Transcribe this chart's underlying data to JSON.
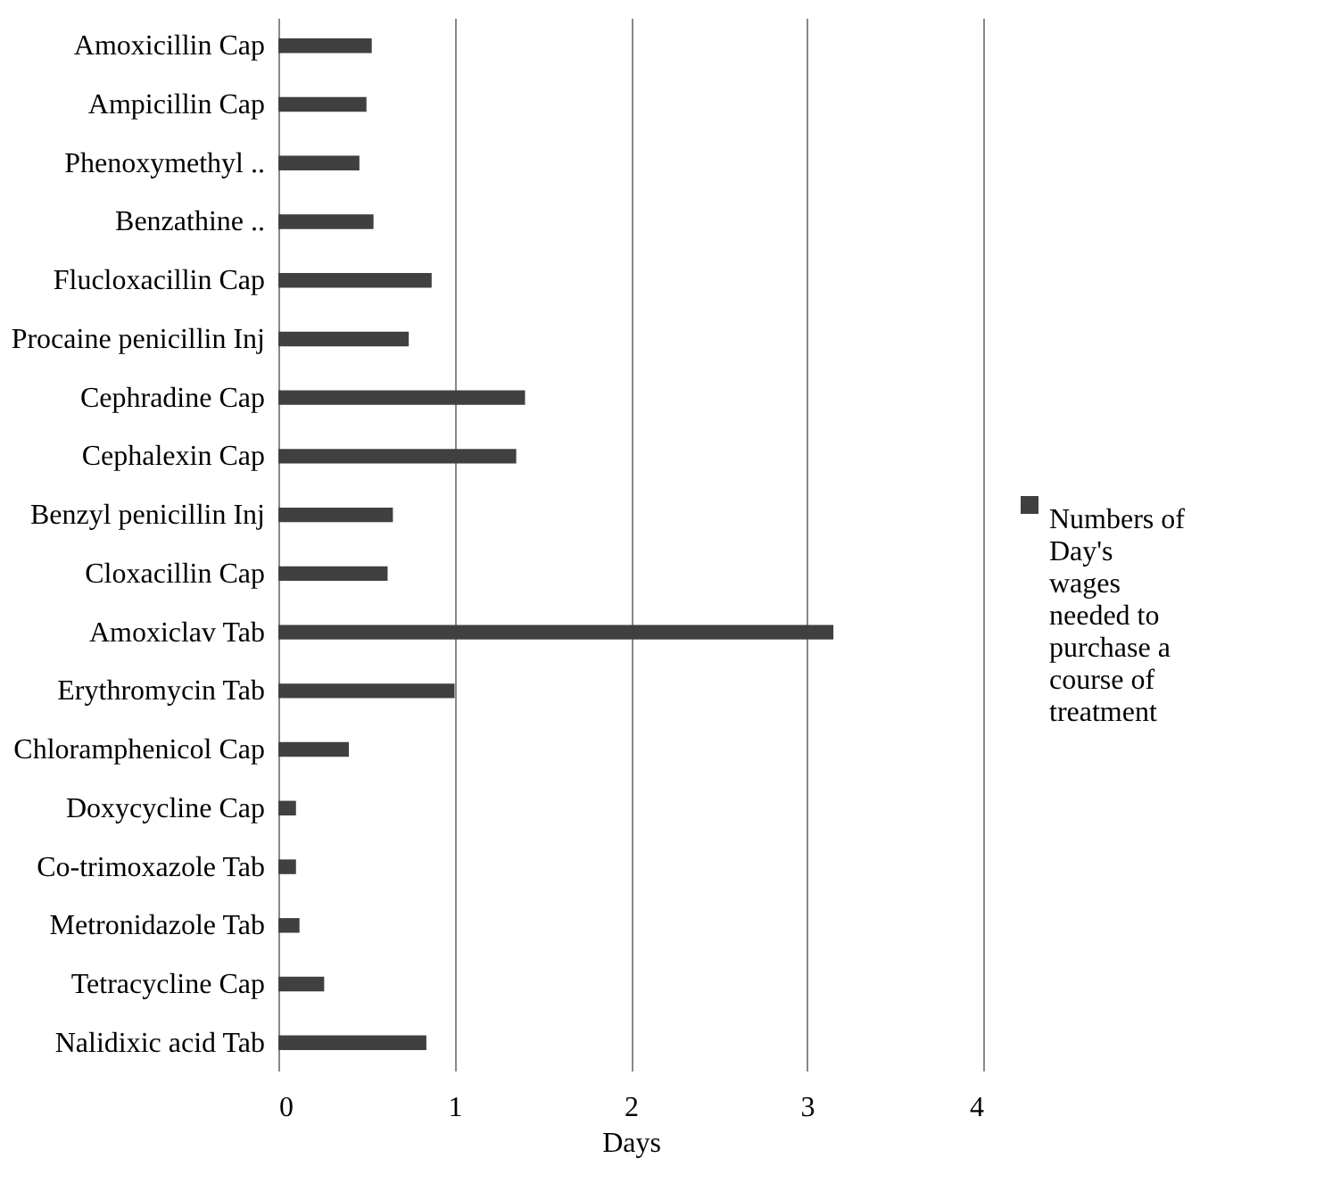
{
  "chart_data": {
    "type": "bar",
    "orientation": "horizontal",
    "xlabel": "Days",
    "categories": [
      "Amoxicillin Cap",
      "Ampicillin Cap",
      "Phenoxymethyl ..",
      "Benzathine ..",
      "Flucloxacillin Cap",
      "Procaine penicillin Inj",
      "Cephradine Cap",
      "Cephalexin Cap",
      "Benzyl penicillin Inj",
      "Cloxacillin Cap",
      "Amoxiclav Tab",
      "Erythromycin Tab",
      "Chloramphenicol Cap",
      "Doxycycline Cap",
      "Co-trimoxazole Tab",
      "Metronidazole Tab",
      "Tetracycline Cap",
      "Nalidixic acid Tab"
    ],
    "series": [
      {
        "name": "Numbers of Day's wages needed to purchase a course of treatment",
        "color": "#404040",
        "values": [
          0.53,
          0.5,
          0.46,
          0.54,
          0.87,
          0.74,
          1.4,
          1.35,
          0.65,
          0.62,
          3.15,
          1.0,
          0.4,
          0.1,
          0.1,
          0.12,
          0.26,
          0.84
        ]
      }
    ],
    "xlim": [
      0,
      4
    ],
    "xticks": [
      0,
      1,
      2,
      3,
      4
    ],
    "grid": "x",
    "legend": "right"
  }
}
